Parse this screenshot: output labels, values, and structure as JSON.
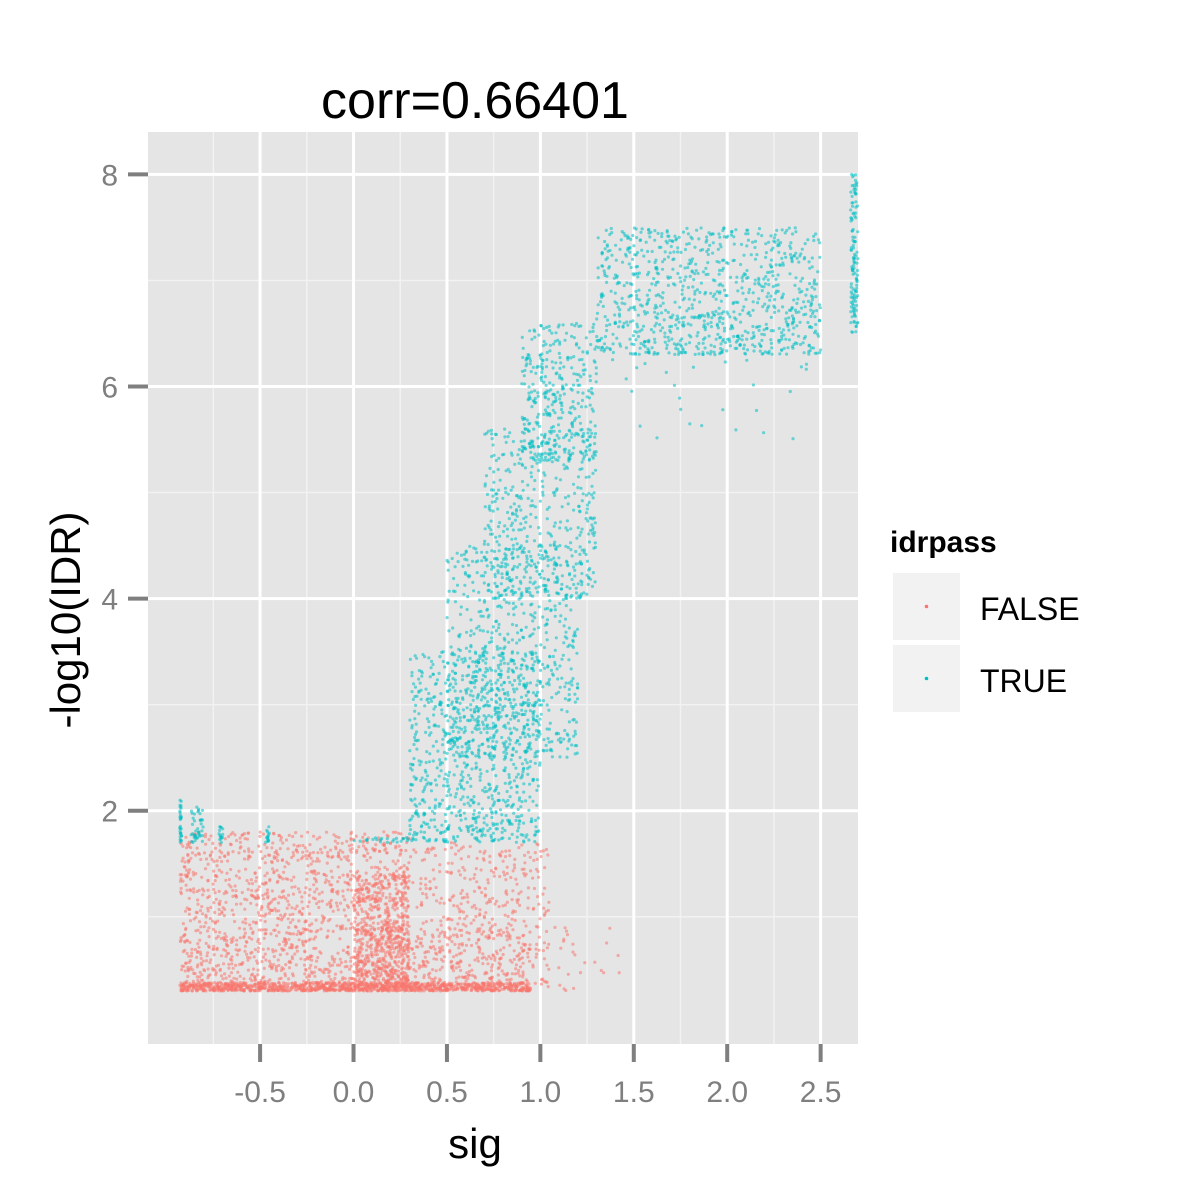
{
  "chart_data": {
    "type": "scatter",
    "title": "corr=0.66401",
    "xlabel": "sig",
    "ylabel": "-log10(IDR)",
    "xlim": [
      -1.1,
      2.7
    ],
    "ylim": [
      -0.2,
      8.4
    ],
    "x_ticks": [
      -0.5,
      0.0,
      0.5,
      1.0,
      1.5,
      2.0,
      2.5
    ],
    "x_tick_labels": [
      "-0.5",
      "0.0",
      "0.5",
      "1.0",
      "1.5",
      "2.0",
      "2.5"
    ],
    "y_ticks": [
      2,
      4,
      6,
      8
    ],
    "y_tick_labels": [
      "2",
      "4",
      "6",
      "8"
    ],
    "grid": true,
    "legend": {
      "title": "idrpass",
      "position": "right",
      "entries": [
        {
          "label": "FALSE",
          "color": "#f8766d"
        },
        {
          "label": "TRUE",
          "color": "#00bfc4"
        }
      ]
    },
    "series": [
      {
        "name": "FALSE",
        "color": "#f8766d",
        "clusters": [
          {
            "x": [
              -0.93,
              0.3
            ],
            "y": [
              0.3,
              1.8
            ],
            "n": 1400
          },
          {
            "x": [
              -0.93,
              0.95
            ],
            "y": [
              0.3,
              0.38
            ],
            "n": 900
          },
          {
            "x": [
              0.0,
              0.3
            ],
            "y": [
              0.3,
              1.4
            ],
            "n": 500
          },
          {
            "x": [
              0.3,
              1.05
            ],
            "y": [
              0.3,
              1.7
            ],
            "n": 450
          },
          {
            "x": [
              0.0,
              0.95
            ],
            "y": [
              0.3,
              0.9
            ],
            "n": 250
          },
          {
            "x": [
              1.05,
              1.45
            ],
            "y": [
              0.3,
              0.9
            ],
            "n": 25
          }
        ]
      },
      {
        "name": "TRUE",
        "color": "#00bfc4",
        "clusters": [
          {
            "x": [
              -0.93,
              -0.92
            ],
            "y": [
              1.7,
              2.1
            ],
            "n": 30
          },
          {
            "x": [
              -0.87,
              -0.8
            ],
            "y": [
              1.7,
              2.05
            ],
            "n": 40
          },
          {
            "x": [
              -0.72,
              -0.7
            ],
            "y": [
              1.7,
              1.85
            ],
            "n": 15
          },
          {
            "x": [
              -0.47,
              -0.45
            ],
            "y": [
              1.7,
              1.85
            ],
            "n": 15
          },
          {
            "x": [
              0.0,
              0.35
            ],
            "y": [
              1.7,
              1.75
            ],
            "n": 25
          },
          {
            "x": [
              0.3,
              1.0
            ],
            "y": [
              1.7,
              3.5
            ],
            "n": 800
          },
          {
            "x": [
              0.5,
              1.2
            ],
            "y": [
              2.5,
              4.5
            ],
            "n": 650
          },
          {
            "x": [
              0.7,
              1.3
            ],
            "y": [
              4.0,
              5.6
            ],
            "n": 450
          },
          {
            "x": [
              0.9,
              1.3
            ],
            "y": [
              5.3,
              6.6
            ],
            "n": 350
          },
          {
            "x": [
              1.3,
              2.5
            ],
            "y": [
              6.3,
              7.5
            ],
            "n": 900
          },
          {
            "x": [
              2.66,
              2.7
            ],
            "y": [
              6.5,
              8.0
            ],
            "n": 120
          },
          {
            "x": [
              1.3,
              2.5
            ],
            "y": [
              5.5,
              6.4
            ],
            "n": 30
          }
        ]
      }
    ]
  }
}
